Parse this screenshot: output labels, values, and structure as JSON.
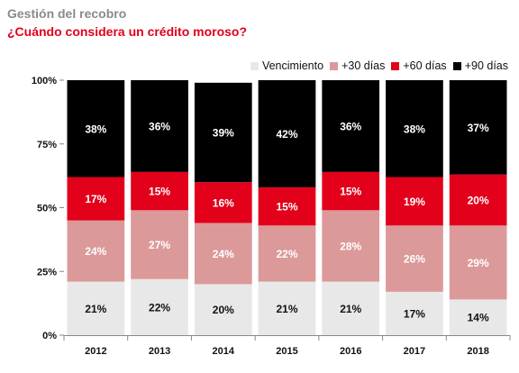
{
  "header": {
    "supertitle": "Gestión del recobro",
    "title": "¿Cuándo considera un crédito moroso?"
  },
  "chart_data": {
    "type": "bar",
    "stacked": true,
    "percent_stacked": true,
    "categories": [
      "2012",
      "2013",
      "2014",
      "2015",
      "2016",
      "2017",
      "2018"
    ],
    "series": [
      {
        "name": "Vencimiento",
        "color": "#e8e8e8",
        "label_color": "#111111",
        "values": [
          21,
          22,
          20,
          21,
          21,
          17,
          14
        ],
        "labels": [
          "21%",
          "22%",
          "20%",
          "21%",
          "21%",
          "17%",
          "14%"
        ]
      },
      {
        "name": "+30 días",
        "color": "#dc9999",
        "label_color": "#ffffff",
        "values": [
          24,
          27,
          24,
          22,
          28,
          26,
          29
        ],
        "labels": [
          "24%",
          "27%",
          "24%",
          "22%",
          "28%",
          "26%",
          "29%"
        ]
      },
      {
        "name": "+60 días",
        "color": "#e2001a",
        "label_color": "#ffffff",
        "values": [
          17,
          15,
          16,
          15,
          15,
          19,
          20
        ],
        "labels": [
          "17%",
          "15%",
          "16%",
          "15%",
          "15%",
          "19%",
          "20%"
        ]
      },
      {
        "name": "+90 días",
        "color": "#000000",
        "label_color": "#ffffff",
        "values": [
          38,
          36,
          39,
          42,
          36,
          38,
          37
        ],
        "labels": [
          "38%",
          "36%",
          "39%",
          "42%",
          "36%",
          "38%",
          "37%"
        ]
      }
    ],
    "y_ticks": [
      "0%",
      "25%",
      "50%",
      "75%",
      "100%"
    ],
    "ylim": [
      0,
      100
    ],
    "legend_position": "top-right",
    "grid": false
  }
}
